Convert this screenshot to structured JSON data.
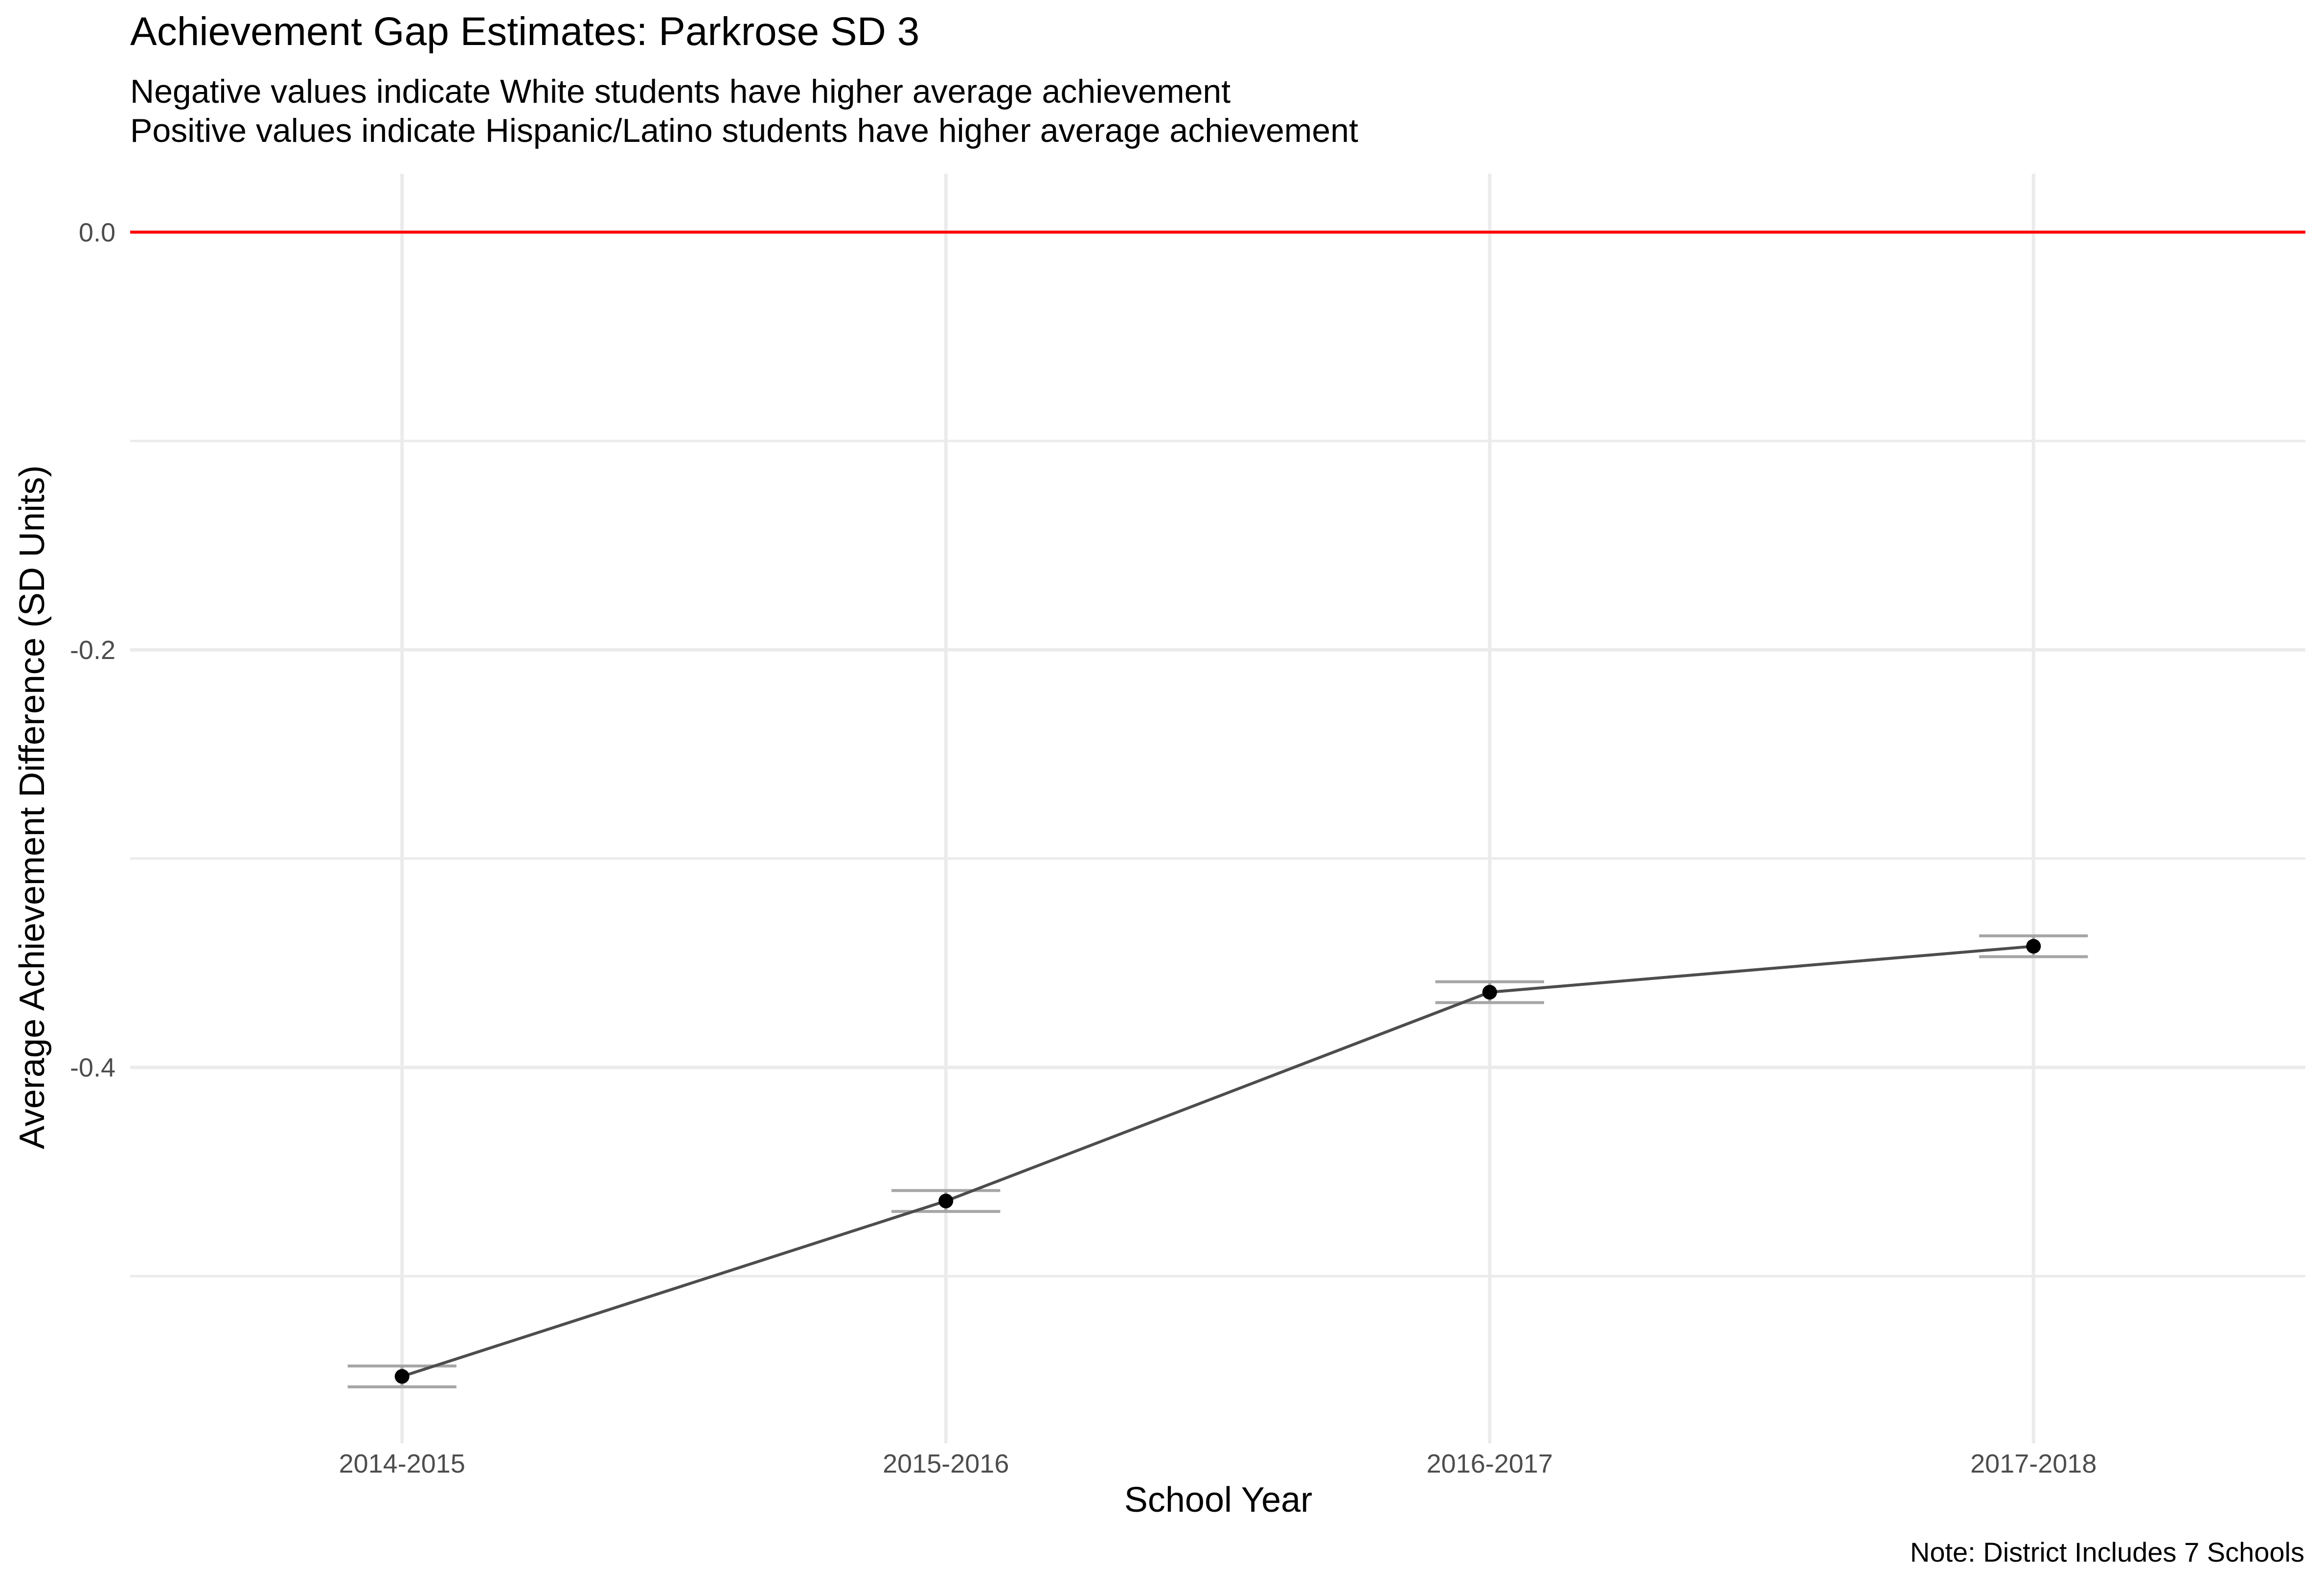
{
  "chart_data": {
    "type": "line",
    "title": "Achievement Gap Estimates: Parkrose SD 3",
    "subtitle_lines": [
      "Negative values indicate White students have higher average achievement",
      "Positive values indicate Hispanic/Latino students have higher average achievement"
    ],
    "xlabel": "School Year",
    "ylabel": "Average Achievement Difference (SD Units)",
    "caption": "Note: District Includes 7 Schools",
    "categories": [
      "2014-2015",
      "2015-2016",
      "2016-2017",
      "2017-2018"
    ],
    "values": [
      -0.548,
      -0.464,
      -0.364,
      -0.342
    ],
    "error_lower": [
      -0.553,
      -0.469,
      -0.369,
      -0.347
    ],
    "error_upper": [
      -0.543,
      -0.459,
      -0.359,
      -0.337
    ],
    "ylim": [
      -0.58,
      0.028
    ],
    "y_ticks": [
      0.0,
      -0.2,
      -0.4
    ],
    "y_tick_labels": [
      "0.0",
      "-0.2",
      "-0.4"
    ],
    "y_minor_gridlines": [
      -0.1,
      -0.3,
      -0.5
    ],
    "reference_line": {
      "y": 0,
      "color": "#ff0000"
    },
    "grid": true,
    "colors": {
      "line": "#4d4d4d",
      "point": "#000000",
      "errorbar": "#a6a6a6",
      "grid": "#ebebeb"
    }
  }
}
